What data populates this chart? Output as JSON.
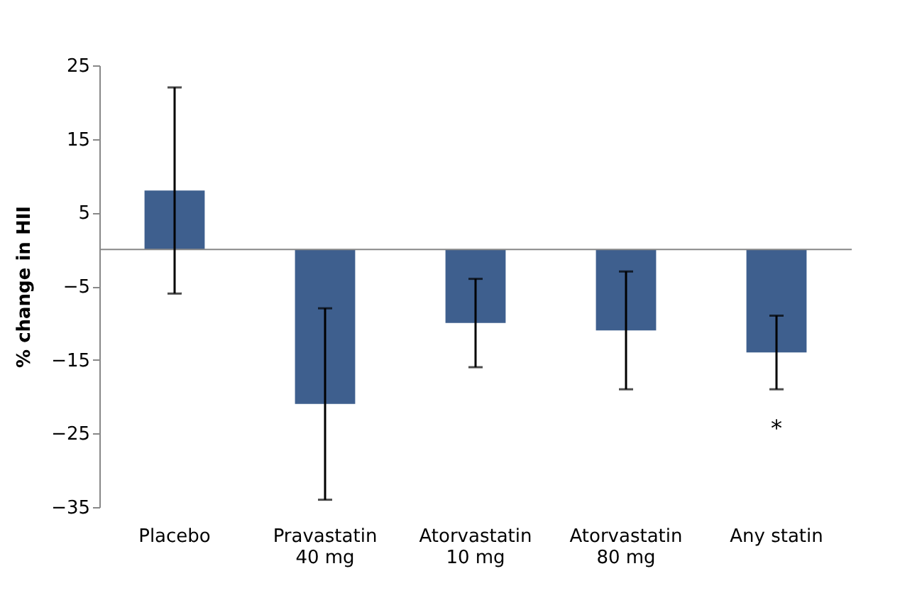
{
  "chart_data": {
    "type": "bar",
    "ylabel": "% change in HII",
    "categories": [
      "Placebo",
      "Pravastatin\n40 mg",
      "Atorvastatin\n10 mg",
      "Atorvastatin\n80 mg",
      "Any statin"
    ],
    "series": [
      {
        "color": "#3e5f8e",
        "values": [
          8,
          -21,
          -10,
          -11,
          -14
        ],
        "errors": [
          [
            -6,
            22
          ],
          [
            -34,
            -8
          ],
          [
            -16,
            -4
          ],
          [
            -19,
            -3
          ],
          [
            -19,
            -9
          ]
        ]
      }
    ],
    "ylim": [
      -35,
      25
    ],
    "yticks": [
      -35,
      -25,
      -15,
      -5,
      5,
      15,
      25
    ],
    "grid": false,
    "annotations": [
      "*"
    ]
  }
}
